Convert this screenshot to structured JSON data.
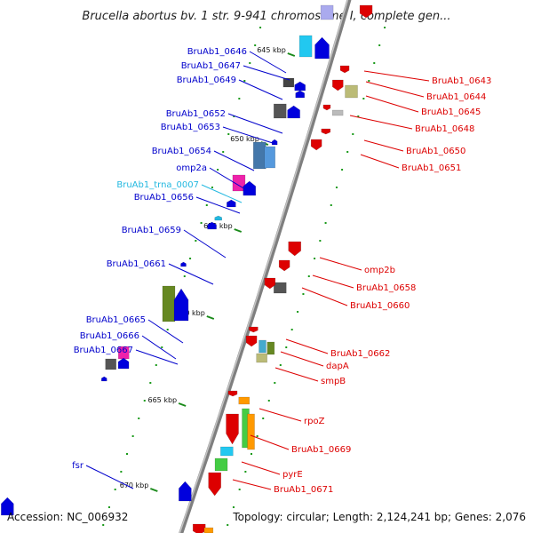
{
  "title": "Brucella abortus bv. 1 str. 9-941 chromosome I, complete gen...",
  "footer": {
    "accession": "Accession: NC_006932",
    "summary": "Topology: circular; Length: 2,124,241 bp; Genes: 2,076"
  },
  "ticks": [
    "645 kbp",
    "650 kbp",
    "655 kbp",
    "660 kbp",
    "665 kbp",
    "670 kbp"
  ],
  "colors": {
    "forward": "#0000cc",
    "reverse": "#dd0000",
    "trna": "#22b8e0",
    "backbone": "#888888"
  },
  "genes": [
    {
      "label": "BruAb1_0646",
      "strand": "forward",
      "color": "#0000cc"
    },
    {
      "label": "BruAb1_0647",
      "strand": "forward",
      "color": "#0000cc"
    },
    {
      "label": "BruAb1_0649",
      "strand": "forward",
      "color": "#0000cc"
    },
    {
      "label": "BruAb1_0652",
      "strand": "forward",
      "color": "#0000cc"
    },
    {
      "label": "BruAb1_0653",
      "strand": "forward",
      "color": "#0000cc"
    },
    {
      "label": "BruAb1_0654",
      "strand": "forward",
      "color": "#0000cc"
    },
    {
      "label": "omp2a",
      "strand": "forward",
      "color": "#0000cc"
    },
    {
      "label": "BruAb1_trna_0007",
      "strand": "forward",
      "color": "#22b8e0"
    },
    {
      "label": "BruAb1_0656",
      "strand": "forward",
      "color": "#0000cc"
    },
    {
      "label": "BruAb1_0659",
      "strand": "forward",
      "color": "#0000cc"
    },
    {
      "label": "BruAb1_0661",
      "strand": "forward",
      "color": "#0000cc"
    },
    {
      "label": "BruAb1_0665",
      "strand": "forward",
      "color": "#0000cc"
    },
    {
      "label": "BruAb1_0666",
      "strand": "forward",
      "color": "#0000cc"
    },
    {
      "label": "BruAb1_0667",
      "strand": "forward",
      "color": "#0000cc"
    },
    {
      "label": "fsr",
      "strand": "forward",
      "color": "#0000cc"
    },
    {
      "label": "BruAb1_0643",
      "strand": "reverse",
      "color": "#dd0000"
    },
    {
      "label": "BruAb1_0644",
      "strand": "reverse",
      "color": "#dd0000"
    },
    {
      "label": "BruAb1_0645",
      "strand": "reverse",
      "color": "#dd0000"
    },
    {
      "label": "BruAb1_0648",
      "strand": "reverse",
      "color": "#dd0000"
    },
    {
      "label": "BruAb1_0650",
      "strand": "reverse",
      "color": "#dd0000"
    },
    {
      "label": "BruAb1_0651",
      "strand": "reverse",
      "color": "#dd0000"
    },
    {
      "label": "omp2b",
      "strand": "reverse",
      "color": "#dd0000"
    },
    {
      "label": "BruAb1_0658",
      "strand": "reverse",
      "color": "#dd0000"
    },
    {
      "label": "BruAb1_0660",
      "strand": "reverse",
      "color": "#dd0000"
    },
    {
      "label": "BruAb1_0662",
      "strand": "reverse",
      "color": "#dd0000"
    },
    {
      "label": "dapA",
      "strand": "reverse",
      "color": "#dd0000"
    },
    {
      "label": "smpB",
      "strand": "reverse",
      "color": "#dd0000"
    },
    {
      "label": "rpoZ",
      "strand": "reverse",
      "color": "#dd0000"
    },
    {
      "label": "BruAb1_0669",
      "strand": "reverse",
      "color": "#dd0000"
    },
    {
      "label": "pyrE",
      "strand": "reverse",
      "color": "#dd0000"
    },
    {
      "label": "BruAb1_0671",
      "strand": "reverse",
      "color": "#dd0000"
    }
  ]
}
